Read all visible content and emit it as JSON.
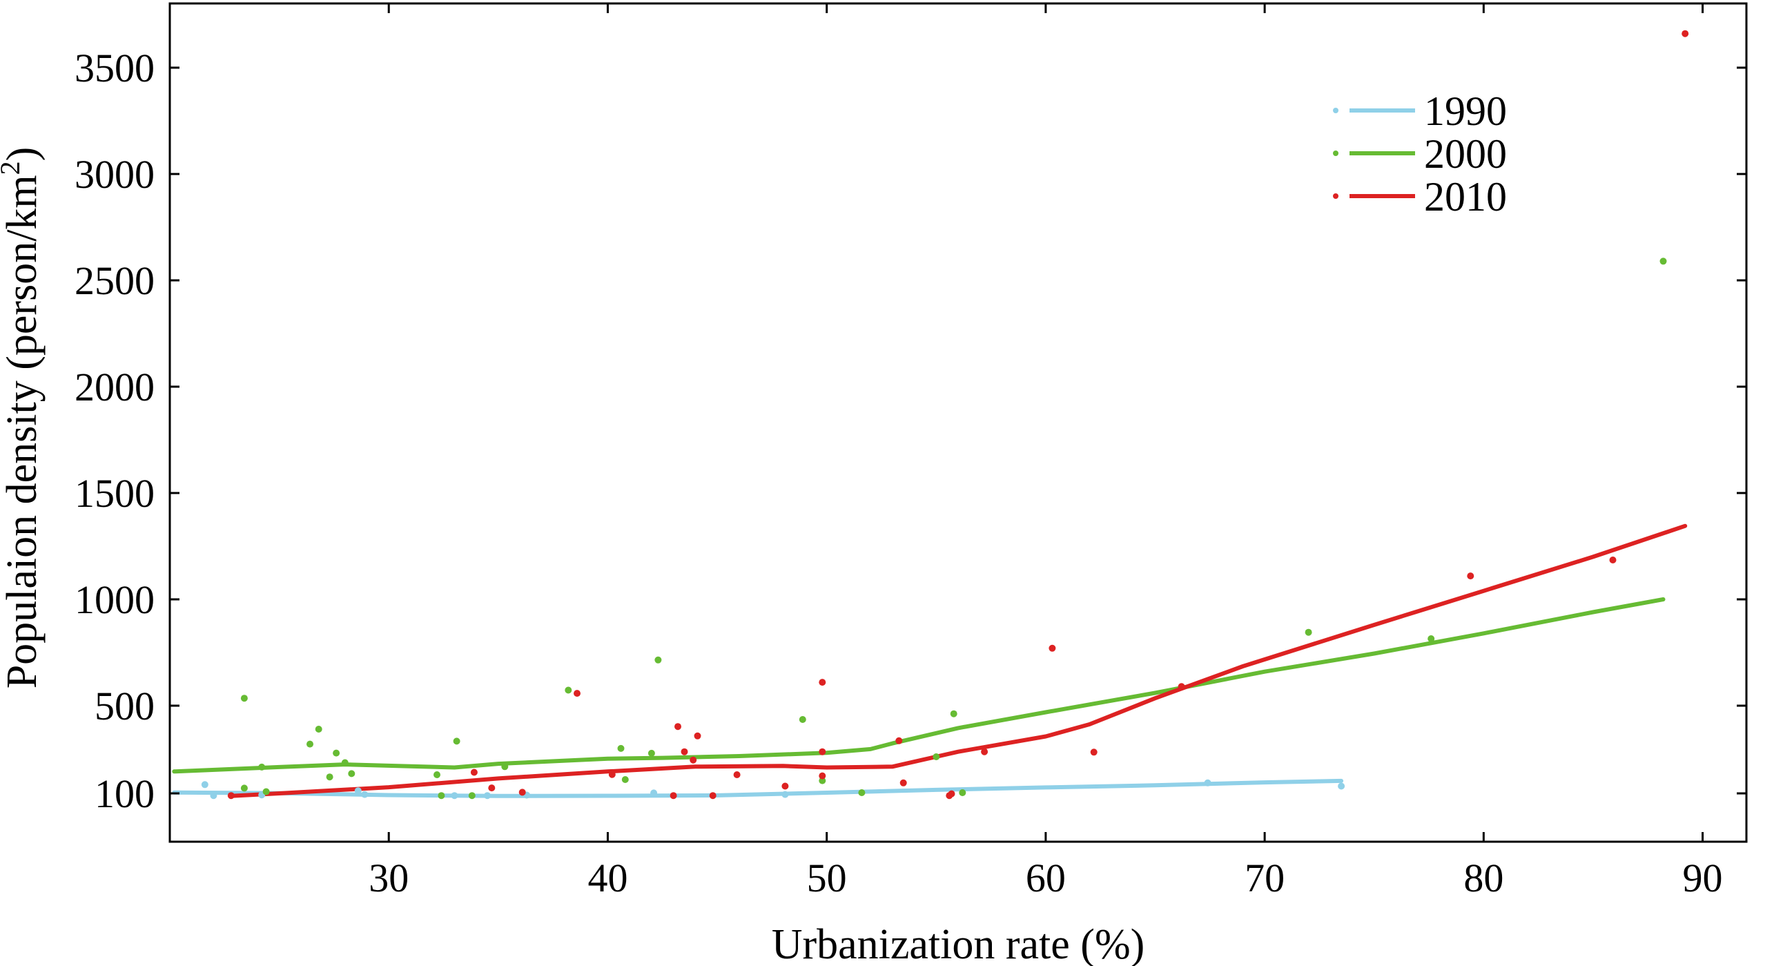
{
  "chart_data": {
    "type": "scatter",
    "title": "",
    "xlabel": "Urbanization rate (%)",
    "ylabel_main": "Populaion density (person/km",
    "ylabel_sup": "2",
    "ylabel_close": ")",
    "xlim": [
      20,
      92
    ],
    "xticks": [
      30,
      40,
      50,
      60,
      70,
      80,
      90
    ],
    "yticks": [
      100,
      500,
      1000,
      1500,
      2000,
      2500,
      3000,
      3500
    ],
    "yscale_note": "piecewise: 100 to 500 spans half the spacing of other 500-unit steps",
    "legend_position": "top-right",
    "series": [
      {
        "name": "1990",
        "color": "#8fd0e8",
        "points": [
          [
            21.6,
            140
          ],
          [
            22.0,
            90
          ],
          [
            24.2,
            93
          ],
          [
            28.6,
            112
          ],
          [
            28.9,
            95
          ],
          [
            33.0,
            90
          ],
          [
            34.5,
            90
          ],
          [
            36.3,
            92
          ],
          [
            42.1,
            102
          ],
          [
            48.1,
            95
          ],
          [
            56.2,
            104
          ],
          [
            67.4,
            148
          ],
          [
            73.5,
            133
          ]
        ],
        "fit": [
          [
            20.2,
            104
          ],
          [
            25,
            101
          ],
          [
            30,
            92
          ],
          [
            35,
            88
          ],
          [
            40,
            89
          ],
          [
            45,
            91
          ],
          [
            50,
            103
          ],
          [
            55,
            116
          ],
          [
            60,
            127
          ],
          [
            65,
            137
          ],
          [
            70,
            150
          ],
          [
            73.5,
            157
          ]
        ]
      },
      {
        "name": "2000",
        "color": "#66bb33",
        "points": [
          [
            23.4,
            535
          ],
          [
            23.4,
            124
          ],
          [
            24.2,
            220
          ],
          [
            24.4,
            108
          ],
          [
            26.4,
            325
          ],
          [
            26.8,
            393
          ],
          [
            27.3,
            175
          ],
          [
            27.6,
            284
          ],
          [
            28.0,
            240
          ],
          [
            28.3,
            190
          ],
          [
            32.2,
            185
          ],
          [
            32.4,
            90
          ],
          [
            33.1,
            338
          ],
          [
            33.8,
            90
          ],
          [
            35.3,
            222
          ],
          [
            38.2,
            573
          ],
          [
            40.6,
            305
          ],
          [
            40.8,
            163
          ],
          [
            42.0,
            283
          ],
          [
            42.3,
            715
          ],
          [
            48.9,
            437
          ],
          [
            49.8,
            158
          ],
          [
            51.6,
            103
          ],
          [
            55.0,
            267
          ],
          [
            55.8,
            463
          ],
          [
            56.2,
            103
          ],
          [
            72.0,
            845
          ],
          [
            77.6,
            815
          ],
          [
            88.2,
            2590
          ]
        ],
        "fit": [
          [
            20.2,
            200
          ],
          [
            25,
            220
          ],
          [
            28,
            232
          ],
          [
            33,
            218
          ],
          [
            35,
            235
          ],
          [
            40,
            258
          ],
          [
            42.5,
            262
          ],
          [
            46,
            270
          ],
          [
            50,
            285
          ],
          [
            52,
            302
          ],
          [
            53,
            328
          ],
          [
            56,
            398
          ],
          [
            60,
            470
          ],
          [
            65,
            560
          ],
          [
            70,
            660
          ],
          [
            75,
            745
          ],
          [
            80,
            840
          ],
          [
            85,
            940
          ],
          [
            88.2,
            1000
          ]
        ]
      },
      {
        "name": "2010",
        "color": "#dd2222",
        "points": [
          [
            22.8,
            90
          ],
          [
            33.9,
            196
          ],
          [
            34.7,
            125
          ],
          [
            36.1,
            105
          ],
          [
            38.6,
            558
          ],
          [
            40.2,
            186
          ],
          [
            43.0,
            90
          ],
          [
            43.2,
            405
          ],
          [
            43.5,
            290
          ],
          [
            43.9,
            252
          ],
          [
            44.1,
            362
          ],
          [
            44.8,
            90
          ],
          [
            45.9,
            185
          ],
          [
            48.1,
            133
          ],
          [
            49.8,
            180
          ],
          [
            49.8,
            610
          ],
          [
            49.8,
            290
          ],
          [
            53.3,
            340
          ],
          [
            53.5,
            148
          ],
          [
            55.6,
            90
          ],
          [
            55.7,
            98
          ],
          [
            57.2,
            290
          ],
          [
            60.3,
            770
          ],
          [
            62.2,
            288
          ],
          [
            66.2,
            590
          ],
          [
            79.4,
            1110
          ],
          [
            85.9,
            1185
          ],
          [
            89.2,
            3660
          ]
        ],
        "fit": [
          [
            22.8,
            88
          ],
          [
            25,
            100
          ],
          [
            30,
            128
          ],
          [
            35,
            168
          ],
          [
            40,
            200
          ],
          [
            44,
            222
          ],
          [
            48,
            225
          ],
          [
            50,
            218
          ],
          [
            53,
            222
          ],
          [
            56,
            290
          ],
          [
            60,
            360
          ],
          [
            62,
            415
          ],
          [
            65,
            535
          ],
          [
            69,
            685
          ],
          [
            75,
            880
          ],
          [
            80,
            1040
          ],
          [
            85,
            1200
          ],
          [
            89.2,
            1345
          ]
        ]
      }
    ]
  }
}
